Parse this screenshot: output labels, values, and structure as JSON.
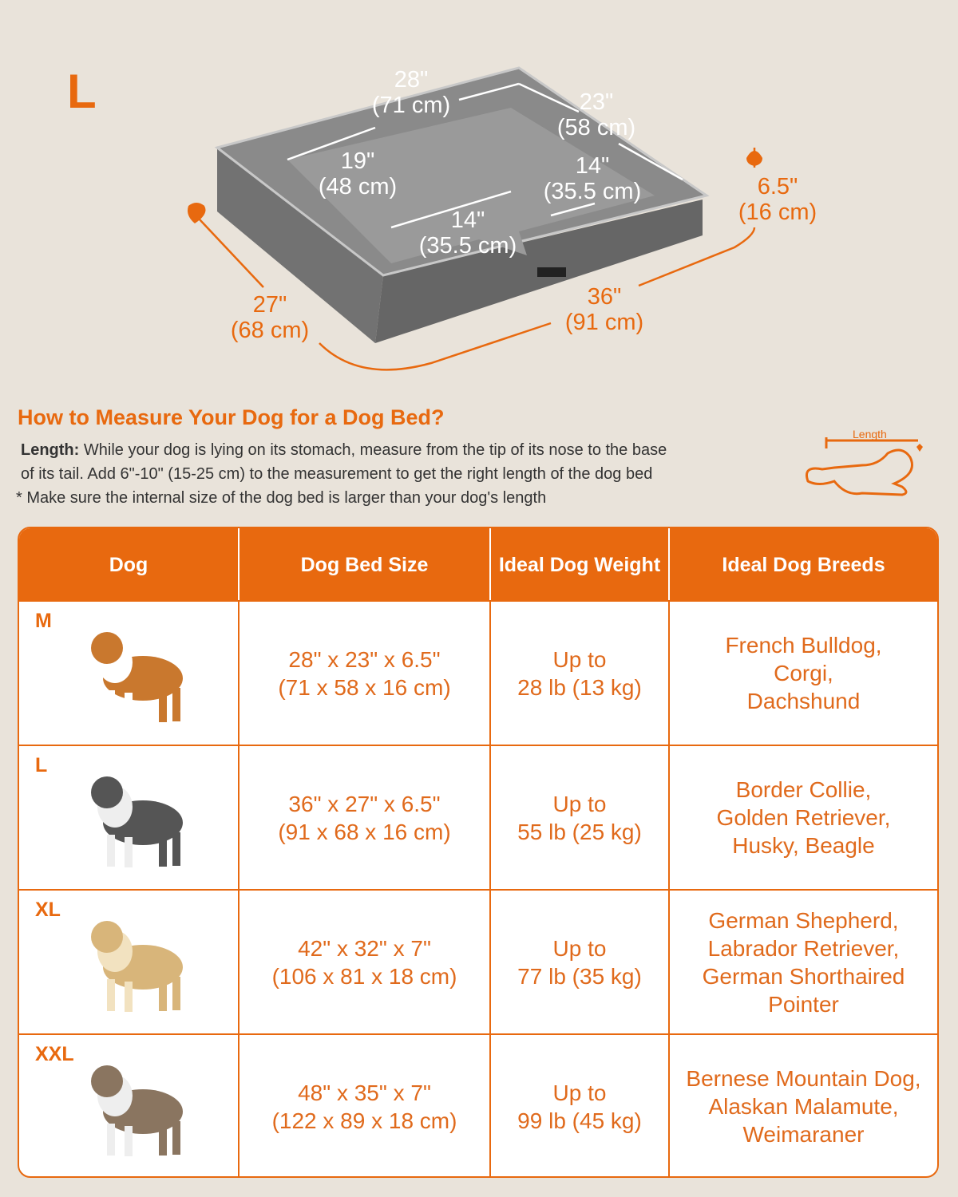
{
  "size_label": "L",
  "dimensions": {
    "top_length": [
      "28\"",
      "(71 cm)"
    ],
    "top_depth": [
      "23\"",
      "(58 cm)"
    ],
    "left_bolster": [
      "19\"",
      "(48 cm)"
    ],
    "right_inner": [
      "14\"",
      "(35.5 cm)"
    ],
    "front_inner": [
      "14\"",
      "(35.5 cm)"
    ],
    "height": [
      "6.5\"",
      "(16 cm)"
    ],
    "width": [
      "27\"",
      "(68 cm)"
    ],
    "length": [
      "36\"",
      "(91 cm)"
    ]
  },
  "measure": {
    "title": "How to Measure Your Dog for a Dog Bed?",
    "label": "Length:",
    "line1": "While your dog is lying on its stomach, measure from the tip of its nose to the base",
    "line2": "of its tail. Add 6\"-10\" (15-25 cm) to the measurement to get the right length of the dog bed",
    "note": "* Make sure the internal size of the dog bed is larger than your dog's length",
    "icon_label": "Length"
  },
  "table": {
    "headers": [
      "Dog",
      "Dog Bed Size",
      "Ideal Dog Weight",
      "Ideal Dog Breeds"
    ],
    "rows": [
      {
        "size": "M",
        "bed": [
          "28\" x 23\" x 6.5\"",
          "(71 x 58 x 16 cm)"
        ],
        "weight": [
          "Up to",
          "28 lb (13 kg)"
        ],
        "breeds": [
          "French Bulldog,",
          "Corgi,",
          "Dachshund"
        ]
      },
      {
        "size": "L",
        "bed": [
          "36\" x 27\" x 6.5\"",
          "(91 x 68 x 16 cm)"
        ],
        "weight": [
          "Up to",
          "55 lb (25 kg)"
        ],
        "breeds": [
          "Border Collie,",
          "Golden Retriever,",
          "Husky, Beagle"
        ]
      },
      {
        "size": "XL",
        "bed": [
          "42\" x 32\" x 7\"",
          "(106 x 81 x 18 cm)"
        ],
        "weight": [
          "Up to",
          "77 lb (35 kg)"
        ],
        "breeds": [
          "German Shepherd,",
          "Labrador Retriever,",
          "German Shorthaired",
          "Pointer"
        ]
      },
      {
        "size": "XXL",
        "bed": [
          "48\" x 35\" x 7\"",
          "(122 x 89 x 18 cm)"
        ],
        "weight": [
          "Up to",
          "99 lb (45 kg)"
        ],
        "breeds": [
          "Bernese Mountain Dog,",
          "Alaskan Malamute,",
          "Weimaraner"
        ]
      }
    ]
  },
  "colors": {
    "accent": "#e8690f",
    "background": "#e9e3da",
    "bed": "#6b6b6b"
  }
}
